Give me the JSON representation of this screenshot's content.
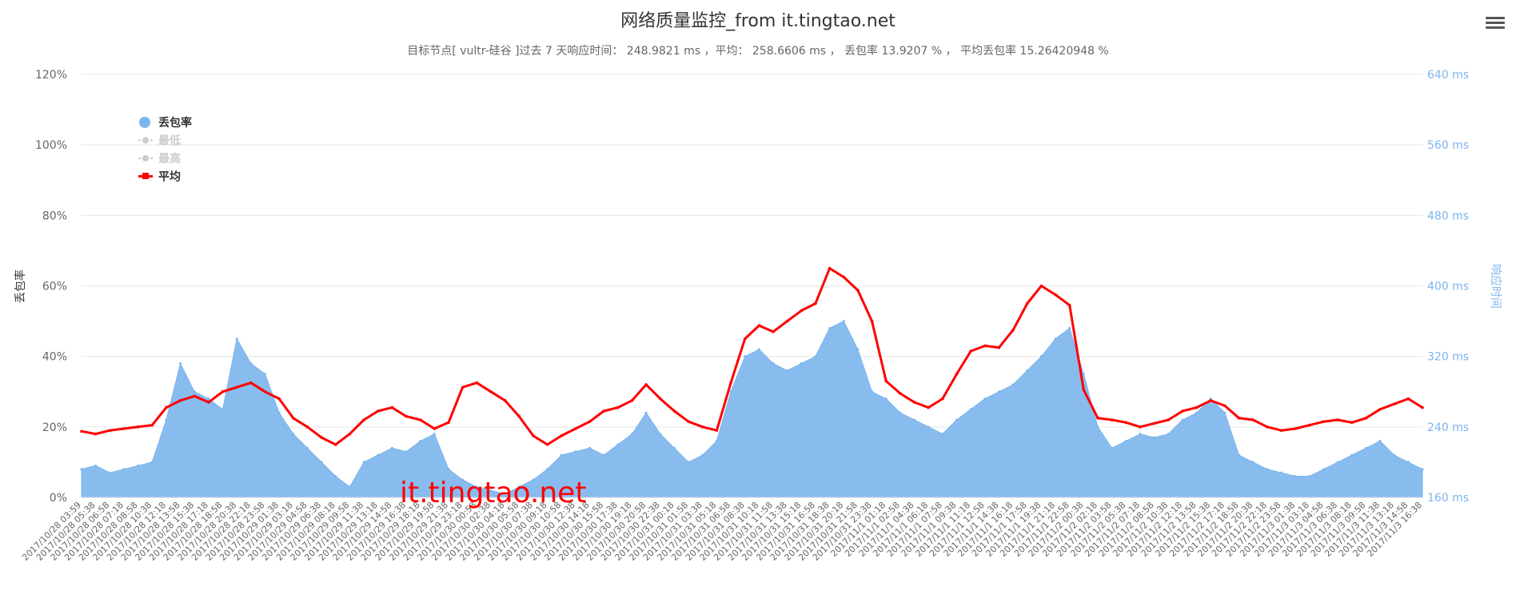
{
  "colors": {
    "loss": "#7cb5ec",
    "avg": "#ff0000",
    "grid": "#e6e6e6",
    "muted": "#cccccc",
    "axis_right": "#7cb5ec",
    "text": "#333333"
  },
  "watermark": "it.tingtao.net",
  "menu_icon": "hamburger-menu-icon",
  "chart_data": {
    "type": "area+line",
    "title": "网络质量监控_from it.tingtao.net",
    "subtitle": "目标节点[ vultr-硅谷 ]过去 7 天响应时间： 248.9821 ms ，平均： 258.6606 ms ， 丢包率 13.9207 % ， 平均丢包率 15.26420948 %",
    "ylabel_left": "丢包率",
    "ylabel_right": "响应时间",
    "left_axis": {
      "min": 0,
      "max": 120,
      "ticks": [
        "0%",
        "20%",
        "40%",
        "60%",
        "80%",
        "100%",
        "120%"
      ]
    },
    "right_axis": {
      "min": 160,
      "max": 640,
      "ticks": [
        "160 ms",
        "240 ms",
        "320 ms",
        "400 ms",
        "480 ms",
        "560 ms",
        "640 ms"
      ]
    },
    "legend": {
      "position": "top-left",
      "items": [
        {
          "name": "丢包率",
          "active": true
        },
        {
          "name": "最低",
          "active": false
        },
        {
          "name": "最高",
          "active": false
        },
        {
          "name": "平均",
          "active": true
        }
      ]
    },
    "x_categories": [
      "2017/10/28 03:59",
      "2017/10/28 05:38",
      "2017/10/28 06:58",
      "2017/10/28 07:18",
      "2017/10/28 08:58",
      "2017/10/28 10:38",
      "2017/10/28 12:18",
      "2017/10/28 13:58",
      "2017/10/28 15:38",
      "2017/10/28 17:18",
      "2017/10/28 18:58",
      "2017/10/28 20:38",
      "2017/10/28 22:18",
      "2017/10/28 23:58",
      "2017/10/29 01:38",
      "2017/10/29 03:18",
      "2017/10/29 04:58",
      "2017/10/29 06:38",
      "2017/10/29 08:18",
      "2017/10/29 09:58",
      "2017/10/29 11:38",
      "2017/10/29 13:18",
      "2017/10/29 14:58",
      "2017/10/29 16:38",
      "2017/10/29 18:18",
      "2017/10/29 19:58",
      "2017/10/29 21:38",
      "2017/10/29 23:18",
      "2017/10/30 00:58",
      "2017/10/30 02:38",
      "2017/10/30 04:18",
      "2017/10/30 05:58",
      "2017/10/30 07:38",
      "2017/10/30 09:18",
      "2017/10/30 10:58",
      "2017/10/30 12:38",
      "2017/10/30 14:18",
      "2017/10/30 15:58",
      "2017/10/30 17:38",
      "2017/10/30 19:18",
      "2017/10/30 20:58",
      "2017/10/30 22:38",
      "2017/10/31 00:18",
      "2017/10/31 01:58",
      "2017/10/31 03:38",
      "2017/10/31 05:18",
      "2017/10/31 06:58",
      "2017/10/31 08:38",
      "2017/10/31 10:18",
      "2017/10/31 11:58",
      "2017/10/31 13:38",
      "2017/10/31 15:18",
      "2017/10/31 16:58",
      "2017/10/31 18:38",
      "2017/10/31 20:18",
      "2017/10/31 21:58",
      "2017/10/31 23:38",
      "2017/11/1 01:18",
      "2017/11/1 02:58",
      "2017/11/1 04:38",
      "2017/11/1 06:18",
      "2017/11/1 07:58",
      "2017/11/1 09:38",
      "2017/11/1 11:18",
      "2017/11/1 12:58",
      "2017/11/1 14:38",
      "2017/11/1 16:18",
      "2017/11/1 17:58",
      "2017/11/1 19:38",
      "2017/11/1 21:18",
      "2017/11/1 22:58",
      "2017/11/2 00:38",
      "2017/11/2 02:18",
      "2017/11/2 03:58",
      "2017/11/2 05:38",
      "2017/11/2 07:18",
      "2017/11/2 08:58",
      "2017/11/2 10:38",
      "2017/11/2 12:18",
      "2017/11/2 13:58",
      "2017/11/2 15:38",
      "2017/11/2 17:18",
      "2017/11/2 18:58",
      "2017/11/2 20:38",
      "2017/11/2 22:18",
      "2017/11/2 23:58",
      "2017/11/3 01:38",
      "2017/11/3 03:18",
      "2017/11/3 04:58",
      "2017/11/3 06:38",
      "2017/11/3 08:18",
      "2017/11/3 09:58",
      "2017/11/3 11:38",
      "2017/11/3 13:18",
      "2017/11/3 14:58",
      "2017/11/3 16:38"
    ],
    "series": [
      {
        "name": "丢包率",
        "type": "area",
        "axis": "left",
        "values": [
          8,
          9,
          7,
          8,
          9,
          10,
          22,
          38,
          30,
          28,
          25,
          45,
          38,
          35,
          24,
          18,
          14,
          10,
          6,
          3,
          10,
          12,
          14,
          13,
          16,
          18,
          8,
          5,
          3,
          2,
          1,
          3,
          5,
          8,
          12,
          13,
          14,
          12,
          15,
          18,
          24,
          18,
          14,
          10,
          12,
          16,
          30,
          40,
          42,
          38,
          36,
          38,
          40,
          48,
          50,
          42,
          30,
          28,
          24,
          22,
          20,
          18,
          22,
          25,
          28,
          30,
          32,
          36,
          40,
          45,
          48,
          35,
          20,
          14,
          16,
          18,
          17,
          18,
          22,
          24,
          28,
          24,
          12,
          10,
          8,
          7,
          6,
          6,
          8,
          10,
          12,
          14,
          16,
          12,
          10,
          8
        ]
      },
      {
        "name": "平均",
        "type": "line",
        "axis": "right",
        "values": [
          235,
          232,
          236,
          238,
          240,
          242,
          262,
          270,
          275,
          268,
          280,
          285,
          290,
          280,
          272,
          250,
          240,
          228,
          220,
          232,
          248,
          258,
          262,
          252,
          248,
          238,
          245,
          285,
          290,
          280,
          270,
          252,
          230,
          220,
          230,
          238,
          246,
          258,
          262,
          270,
          288,
          272,
          258,
          246,
          240,
          236,
          290,
          340,
          355,
          348,
          360,
          372,
          380,
          420,
          410,
          395,
          360,
          292,
          278,
          268,
          262,
          272,
          300,
          326,
          332,
          330,
          350,
          380,
          400,
          390,
          378,
          282,
          250,
          248,
          245,
          240,
          244,
          248,
          258,
          262,
          270,
          264,
          250,
          248,
          240,
          236,
          238,
          242,
          246,
          248,
          245,
          250,
          260,
          266,
          272,
          262
        ]
      }
    ]
  }
}
